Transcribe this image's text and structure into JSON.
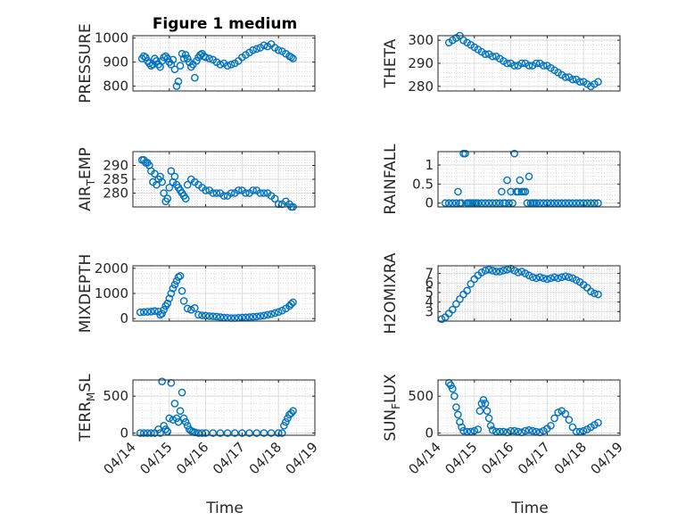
{
  "figure": {
    "title": "Figure 1 medium",
    "xlabel": "Time",
    "marker_color": "#0072BD",
    "axis_color": "#262626",
    "grid_color": "#dfdfdf"
  },
  "chart_data": [
    {
      "type": "scatter",
      "ylabel": "PRESSURE",
      "xlim": [
        0,
        5
      ],
      "ylim": [
        780,
        1010
      ],
      "yticks": [
        800,
        900,
        1000
      ],
      "ytick_labels": [
        "800",
        "900",
        "1000"
      ],
      "xticks": [
        0,
        1,
        2,
        3,
        4,
        5
      ],
      "xtick_labels": [],
      "grid": true,
      "x": [
        0.25,
        0.3,
        0.35,
        0.4,
        0.45,
        0.5,
        0.55,
        0.6,
        0.65,
        0.7,
        0.75,
        0.8,
        0.85,
        0.9,
        0.95,
        1.0,
        1.05,
        1.1,
        1.15,
        1.2,
        1.25,
        1.3,
        1.35,
        1.4,
        1.45,
        1.5,
        1.55,
        1.6,
        1.65,
        1.7,
        1.75,
        1.8,
        1.85,
        1.9,
        1.95,
        2.0,
        2.1,
        2.2,
        2.3,
        2.4,
        2.5,
        2.6,
        2.7,
        2.8,
        2.9,
        3.0,
        3.1,
        3.2,
        3.3,
        3.4,
        3.5,
        3.6,
        3.7,
        3.8,
        3.9,
        4.0,
        4.1,
        4.2,
        4.3,
        4.35,
        4.4
      ],
      "y": [
        915,
        925,
        920,
        905,
        895,
        885,
        890,
        915,
        905,
        890,
        880,
        905,
        920,
        925,
        915,
        900,
        890,
        910,
        870,
        800,
        820,
        885,
        935,
        915,
        930,
        915,
        900,
        880,
        890,
        835,
        905,
        920,
        930,
        935,
        925,
        920,
        915,
        910,
        900,
        890,
        895,
        885,
        890,
        895,
        905,
        920,
        930,
        940,
        950,
        955,
        960,
        970,
        965,
        975,
        960,
        950,
        945,
        935,
        925,
        920,
        915
      ]
    },
    {
      "type": "scatter",
      "ylabel": "THETA",
      "xlim": [
        0,
        5
      ],
      "ylim": [
        278,
        302
      ],
      "yticks": [
        280,
        290,
        300
      ],
      "ytick_labels": [
        "280",
        "290",
        "300"
      ],
      "xticks": [
        0,
        1,
        2,
        3,
        4,
        5
      ],
      "xtick_labels": [],
      "grid": true,
      "x": [
        0.3,
        0.4,
        0.5,
        0.6,
        0.7,
        0.8,
        0.9,
        1.0,
        1.1,
        1.2,
        1.3,
        1.4,
        1.5,
        1.6,
        1.7,
        1.8,
        1.9,
        2.0,
        2.1,
        2.2,
        2.3,
        2.4,
        2.5,
        2.6,
        2.7,
        2.8,
        2.9,
        3.0,
        3.1,
        3.2,
        3.3,
        3.4,
        3.5,
        3.6,
        3.7,
        3.8,
        3.9,
        4.0,
        4.1,
        4.2,
        4.3,
        4.4
      ],
      "y": [
        299,
        300,
        301,
        302,
        300,
        299,
        298,
        297,
        296,
        295,
        294,
        294,
        293,
        293,
        292,
        291,
        290,
        290,
        289,
        289,
        290,
        290,
        289,
        289,
        290,
        290,
        289,
        289,
        288,
        287,
        286,
        285,
        284,
        284,
        283,
        283,
        282,
        282,
        281,
        280,
        281,
        282
      ]
    },
    {
      "type": "scatter",
      "ylabel": "AIR_T_EMP",
      "ylabel_display": "AIRTEMP",
      "xlim": [
        0,
        5
      ],
      "ylim": [
        275,
        295
      ],
      "yticks": [
        280,
        285,
        290
      ],
      "ytick_labels": [
        "280",
        "285",
        "290"
      ],
      "xticks": [
        0,
        1,
        2,
        3,
        4,
        5
      ],
      "xtick_labels": [],
      "grid": true,
      "x": [
        0.25,
        0.3,
        0.35,
        0.4,
        0.45,
        0.5,
        0.55,
        0.6,
        0.65,
        0.7,
        0.75,
        0.8,
        0.85,
        0.9,
        0.95,
        1.0,
        1.05,
        1.1,
        1.15,
        1.2,
        1.25,
        1.3,
        1.35,
        1.4,
        1.45,
        1.5,
        1.6,
        1.7,
        1.8,
        1.9,
        2.0,
        2.1,
        2.2,
        2.3,
        2.4,
        2.5,
        2.6,
        2.7,
        2.8,
        2.9,
        3.0,
        3.1,
        3.2,
        3.3,
        3.4,
        3.5,
        3.6,
        3.7,
        3.8,
        3.9,
        4.0,
        4.1,
        4.2,
        4.3,
        4.35,
        4.4
      ],
      "y": [
        292,
        292,
        291,
        291,
        290,
        288,
        284,
        287,
        283,
        285,
        286,
        284,
        280,
        277,
        278,
        282,
        288,
        284,
        286,
        283,
        282,
        281,
        280,
        279,
        278,
        283,
        285,
        284,
        283,
        282,
        281,
        281,
        280,
        280,
        280,
        279,
        279,
        280,
        280,
        281,
        281,
        280,
        280,
        281,
        281,
        280,
        280,
        280,
        279,
        278,
        276,
        276,
        277,
        276,
        275,
        275
      ]
    },
    {
      "type": "scatter",
      "ylabel": "RAINFALL",
      "xlim": [
        0,
        5
      ],
      "ylim": [
        -0.1,
        1.35
      ],
      "yticks": [
        0,
        0.5,
        1
      ],
      "ytick_labels": [
        "0",
        "0.5",
        "1"
      ],
      "xticks": [
        0,
        1,
        2,
        3,
        4,
        5
      ],
      "xtick_labels": [],
      "grid": true,
      "x": [
        0.2,
        0.3,
        0.4,
        0.5,
        0.55,
        0.6,
        0.65,
        0.7,
        0.75,
        0.8,
        0.85,
        0.9,
        0.95,
        1.0,
        1.05,
        1.1,
        1.2,
        1.3,
        1.4,
        1.5,
        1.6,
        1.7,
        1.75,
        1.8,
        1.85,
        1.9,
        1.95,
        2.0,
        2.05,
        2.1,
        2.15,
        2.2,
        2.25,
        2.3,
        2.35,
        2.4,
        2.45,
        2.5,
        2.55,
        2.6,
        2.65,
        2.7,
        2.8,
        2.9,
        3.0,
        3.1,
        3.2,
        3.3,
        3.4,
        3.5,
        3.6,
        3.7,
        3.8,
        3.9,
        4.0,
        4.1,
        4.2,
        4.3,
        4.4
      ],
      "y": [
        0,
        0,
        0,
        0,
        0.3,
        0,
        0,
        1.3,
        1.3,
        0,
        0,
        0,
        0,
        0,
        0,
        0,
        0,
        0,
        0,
        0,
        0,
        0,
        0.3,
        0,
        0,
        0.6,
        0,
        0.3,
        0,
        1.3,
        0.3,
        0.3,
        0.6,
        0.3,
        0.3,
        0.3,
        0,
        0.7,
        0,
        0,
        0,
        0,
        0,
        0,
        0,
        0,
        0,
        0,
        0,
        0,
        0,
        0,
        0,
        0,
        0,
        0,
        0,
        0,
        0
      ]
    },
    {
      "type": "scatter",
      "ylabel": "MIXDEPTH",
      "xlim": [
        0,
        5
      ],
      "ylim": [
        -100,
        2100
      ],
      "yticks": [
        0,
        1000,
        2000
      ],
      "ytick_labels": [
        "0",
        "1000",
        "2000"
      ],
      "xticks": [
        0,
        1,
        2,
        3,
        4,
        5
      ],
      "xtick_labels": [],
      "grid": true,
      "x": [
        0.2,
        0.3,
        0.4,
        0.5,
        0.6,
        0.7,
        0.75,
        0.8,
        0.85,
        0.9,
        0.95,
        1.0,
        1.05,
        1.1,
        1.15,
        1.2,
        1.25,
        1.3,
        1.35,
        1.4,
        1.5,
        1.6,
        1.7,
        1.8,
        1.9,
        2.0,
        2.1,
        2.2,
        2.3,
        2.4,
        2.5,
        2.6,
        2.7,
        2.8,
        2.9,
        3.0,
        3.1,
        3.2,
        3.3,
        3.4,
        3.5,
        3.6,
        3.7,
        3.8,
        3.9,
        4.0,
        4.1,
        4.2,
        4.3,
        4.35,
        4.4
      ],
      "y": [
        250,
        260,
        270,
        280,
        300,
        280,
        150,
        200,
        350,
        500,
        600,
        800,
        1000,
        1200,
        1350,
        1500,
        1650,
        1700,
        1100,
        700,
        400,
        350,
        420,
        150,
        130,
        120,
        100,
        90,
        80,
        60,
        40,
        30,
        20,
        20,
        30,
        40,
        50,
        60,
        70,
        80,
        100,
        120,
        150,
        180,
        220,
        260,
        320,
        400,
        500,
        580,
        650
      ]
    },
    {
      "type": "scatter",
      "ylabel": "H2OMIXRA",
      "xlim": [
        0,
        5
      ],
      "ylim": [
        2,
        7.8
      ],
      "yticks": [
        3,
        4,
        5,
        6,
        7
      ],
      "ytick_labels": [
        "3",
        "4",
        "5",
        "6",
        "7"
      ],
      "xticks": [
        0,
        1,
        2,
        3,
        4,
        5
      ],
      "xtick_labels": [],
      "grid": true,
      "x": [
        0.1,
        0.2,
        0.3,
        0.4,
        0.5,
        0.6,
        0.7,
        0.8,
        0.9,
        1.0,
        1.1,
        1.2,
        1.3,
        1.4,
        1.5,
        1.6,
        1.7,
        1.8,
        1.9,
        2.0,
        2.1,
        2.2,
        2.3,
        2.4,
        2.5,
        2.6,
        2.7,
        2.8,
        2.9,
        3.0,
        3.1,
        3.2,
        3.3,
        3.4,
        3.5,
        3.6,
        3.7,
        3.8,
        3.9,
        4.0,
        4.1,
        4.2,
        4.3,
        4.4
      ],
      "y": [
        2.2,
        2.4,
        2.8,
        3.2,
        3.8,
        4.3,
        4.8,
        5.2,
        5.9,
        6.4,
        6.8,
        7.1,
        7.3,
        7.4,
        7.3,
        7.2,
        7.2,
        7.3,
        7.4,
        7.5,
        7.3,
        7.1,
        7.2,
        7.0,
        6.8,
        6.6,
        6.5,
        6.6,
        6.5,
        6.4,
        6.5,
        6.6,
        6.5,
        6.6,
        6.7,
        6.6,
        6.5,
        6.3,
        6.1,
        5.8,
        5.5,
        5.1,
        4.9,
        4.8
      ]
    },
    {
      "type": "scatter",
      "ylabel": "TERR_M_SL",
      "ylabel_display": "TERRMSL",
      "xlim": [
        0,
        5
      ],
      "ylim": [
        -30,
        720
      ],
      "yticks": [
        0,
        500
      ],
      "ytick_labels": [
        "0",
        "500"
      ],
      "xticks": [
        0,
        1,
        2,
        3,
        4,
        5
      ],
      "xtick_labels": [
        "04/14",
        "04/15",
        "04/16",
        "04/17",
        "04/18",
        "04/19"
      ],
      "grid": true,
      "x": [
        0.2,
        0.3,
        0.4,
        0.5,
        0.6,
        0.7,
        0.75,
        0.8,
        0.85,
        0.9,
        0.95,
        1.0,
        1.05,
        1.1,
        1.15,
        1.2,
        1.25,
        1.3,
        1.35,
        1.4,
        1.45,
        1.5,
        1.55,
        1.6,
        1.65,
        1.7,
        1.8,
        1.9,
        2.0,
        2.2,
        2.4,
        2.6,
        2.8,
        3.0,
        3.2,
        3.4,
        3.6,
        3.8,
        4.0,
        4.1,
        4.15,
        4.2,
        4.25,
        4.3,
        4.35,
        4.4
      ],
      "y": [
        0,
        0,
        0,
        0,
        0,
        50,
        0,
        700,
        100,
        50,
        20,
        200,
        680,
        180,
        400,
        200,
        150,
        300,
        550,
        200,
        150,
        100,
        50,
        30,
        20,
        10,
        0,
        0,
        0,
        0,
        0,
        0,
        0,
        0,
        0,
        0,
        0,
        0,
        0,
        0,
        100,
        150,
        200,
        250,
        270,
        300
      ]
    },
    {
      "type": "scatter",
      "ylabel": "SUN_F_LUX",
      "ylabel_display": "SUNFLUX",
      "xlim": [
        0,
        5
      ],
      "ylim": [
        -30,
        720
      ],
      "yticks": [
        0,
        500
      ],
      "ytick_labels": [
        "0",
        "500"
      ],
      "xticks": [
        0,
        1,
        2,
        3,
        4,
        5
      ],
      "xtick_labels": [
        "04/14",
        "04/15",
        "04/16",
        "04/17",
        "04/18",
        "04/19"
      ],
      "grid": true,
      "x": [
        0.3,
        0.35,
        0.4,
        0.45,
        0.5,
        0.55,
        0.6,
        0.65,
        0.7,
        0.8,
        0.9,
        1.0,
        1.1,
        1.15,
        1.2,
        1.25,
        1.3,
        1.35,
        1.4,
        1.45,
        1.5,
        1.6,
        1.7,
        1.8,
        1.9,
        2.0,
        2.1,
        2.2,
        2.3,
        2.4,
        2.5,
        2.6,
        2.7,
        2.8,
        2.9,
        3.0,
        3.1,
        3.2,
        3.3,
        3.4,
        3.5,
        3.6,
        3.7,
        3.8,
        3.9,
        4.0,
        4.1,
        4.2,
        4.3,
        4.4
      ],
      "y": [
        680,
        650,
        600,
        500,
        350,
        250,
        150,
        80,
        30,
        20,
        20,
        30,
        50,
        300,
        400,
        450,
        400,
        300,
        200,
        100,
        40,
        20,
        20,
        20,
        10,
        30,
        30,
        20,
        10,
        30,
        40,
        30,
        20,
        10,
        30,
        60,
        100,
        200,
        280,
        300,
        260,
        180,
        80,
        20,
        20,
        30,
        50,
        80,
        110,
        140
      ]
    }
  ]
}
